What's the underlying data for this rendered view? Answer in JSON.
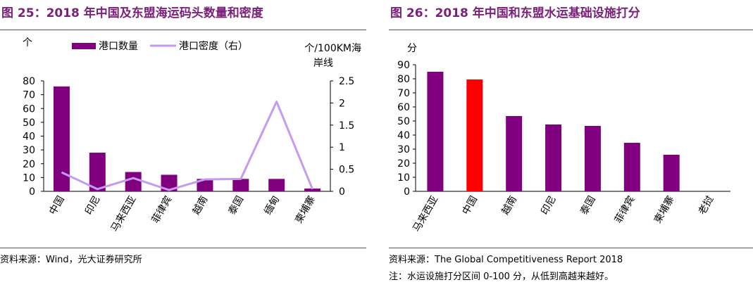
{
  "chart_data": [
    {
      "type": "bar+line",
      "title": "图 25：2018 年中国及东盟海运码头数量和密度",
      "source": "资料来源：Wind，光大证券研究所",
      "categories": [
        "中国",
        "印尼",
        "马来西亚",
        "菲律宾",
        "越南",
        "泰国",
        "缅甸",
        "柬埔寨"
      ],
      "y_left_unit": "个",
      "y_right_unit_line1": "个/100KM海",
      "y_right_unit_line2": "岸线",
      "ylim_left": [
        0,
        80
      ],
      "ylim_right": [
        0,
        2.5
      ],
      "y_left_ticks": [
        "0",
        "10",
        "20",
        "30",
        "40",
        "50",
        "60",
        "70",
        "80"
      ],
      "y_right_ticks": [
        "0",
        "0.5",
        "1",
        "1.5",
        "2",
        "2.5"
      ],
      "legend_position": "top",
      "series": [
        {
          "name": "港口数量",
          "kind": "bar",
          "axis": "left",
          "color": "#800080",
          "values": [
            76,
            28,
            14,
            12,
            9,
            9,
            9,
            2
          ]
        },
        {
          "name": "港口密度（右）",
          "kind": "line",
          "axis": "right",
          "color": "#c39bf2",
          "values": [
            0.43,
            0.05,
            0.3,
            0.03,
            0.27,
            0.28,
            2.03,
            0.05
          ]
        }
      ],
      "grid": false
    },
    {
      "type": "bar",
      "title": "图 26：2018 年中国和东盟水运基础设施打分",
      "source": "资料来源：The Global Competitiveness Report 2018",
      "note": "注：水运设施打分区间 0-100 分，从低到高越来越好。",
      "categories": [
        "马来西亚",
        "中国",
        "越南",
        "印尼",
        "泰国",
        "菲律宾",
        "柬埔寨",
        "老挝"
      ],
      "values": [
        85,
        79.5,
        53.5,
        47.5,
        46.5,
        34.5,
        26,
        null
      ],
      "colors": [
        "#800080",
        "#ff0000",
        "#800080",
        "#800080",
        "#800080",
        "#800080",
        "#800080",
        "#800080"
      ],
      "y_unit": "分",
      "ylim": [
        0,
        90
      ],
      "y_ticks": [
        "0",
        "10",
        "20",
        "30",
        "40",
        "50",
        "60",
        "70",
        "80",
        "90"
      ],
      "grid": false
    }
  ]
}
